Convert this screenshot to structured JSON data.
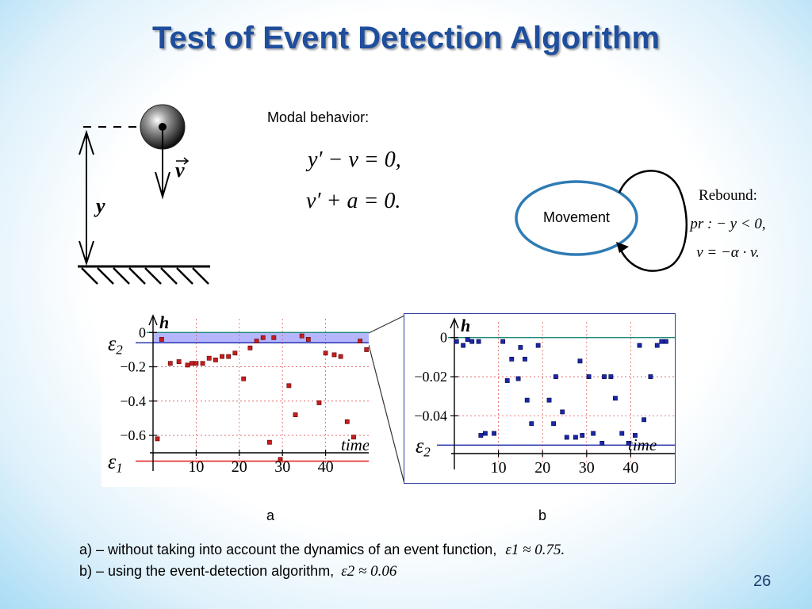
{
  "title": "Test of Event Detection Algorithm",
  "modal_behavior": {
    "label": "Modal behavior:",
    "eq1": "y′ − v = 0,",
    "eq2": "v′ + a = 0."
  },
  "state_diagram": {
    "state": "Movement",
    "transition_title": "Rebound:",
    "transition_predicate": "pr : − y < 0,",
    "transition_action": "v = −α · v."
  },
  "ball_diagram": {
    "velocity_label": "v",
    "height_label": "y"
  },
  "panels": {
    "a": {
      "label": "a"
    },
    "b": {
      "label": "b"
    }
  },
  "caption": {
    "line_a": "a) – without taking into account the dynamics of an event function,",
    "line_a_math": "ε1 ≈ 0.75.",
    "line_b": "b) – using the event-detection algorithm,",
    "line_b_math": "ε2 ≈ 0.06"
  },
  "slide_number": "26",
  "colors": {
    "title": "#1f4e9c",
    "state_border": "#2e7bb4",
    "series_a": "#c41e1e",
    "series_b": "#1a27a8",
    "eps2_band": "#a9a9ff",
    "eps1_line": "#e31a1a",
    "top_line": "#1a8a7a"
  },
  "chart_data": [
    {
      "type": "scatter",
      "ylabel": "h",
      "xlabel": "time",
      "xticks": [
        10,
        20,
        30,
        40
      ],
      "yticks": [
        0,
        -0.2,
        -0.4,
        -0.6
      ],
      "ytick_labels": [
        "0",
        "−0.2",
        "−0.4",
        "−0.6"
      ],
      "xlim": [
        0,
        50
      ],
      "ylim": [
        -0.78,
        0.08
      ],
      "annotations": [
        {
          "text": "ε2",
          "y": -0.06
        },
        {
          "text": "ε1",
          "y": -0.75
        }
      ],
      "grid": true,
      "x": [
        1,
        2,
        4,
        6,
        8,
        9,
        10,
        11.5,
        13,
        14.5,
        16,
        17.5,
        19,
        21,
        22.5,
        24,
        25.5,
        27,
        28,
        29.5,
        31.5,
        33,
        34.5,
        36,
        38.5,
        40,
        42,
        43.5,
        45,
        46.5,
        48,
        49.5
      ],
      "y": [
        -0.62,
        -0.04,
        -0.18,
        -0.17,
        -0.19,
        -0.18,
        -0.18,
        -0.18,
        -0.15,
        -0.16,
        -0.14,
        -0.14,
        -0.12,
        -0.27,
        -0.09,
        -0.05,
        -0.03,
        -0.64,
        -0.03,
        -0.74,
        -0.31,
        -0.48,
        -0.02,
        -0.04,
        -0.41,
        -0.12,
        -0.13,
        -0.14,
        -0.52,
        -0.61,
        -0.05,
        -0.1
      ]
    },
    {
      "type": "scatter",
      "ylabel": "h",
      "xlabel": "time",
      "xticks": [
        10,
        20,
        30,
        40
      ],
      "yticks": [
        0,
        -0.02,
        -0.04
      ],
      "ytick_labels": [
        "0",
        "−0.02",
        "−0.04"
      ],
      "xlim": [
        0,
        50
      ],
      "ylim": [
        -0.065,
        0.008
      ],
      "annotations": [
        {
          "text": "ε2",
          "y": -0.055
        }
      ],
      "grid": true,
      "x": [
        0.5,
        2,
        3,
        4,
        5.5,
        6,
        7,
        9,
        11,
        12,
        13,
        14.5,
        15,
        16,
        16.5,
        17.5,
        19,
        21.5,
        22.5,
        23,
        24.5,
        25.5,
        27.5,
        28.5,
        29,
        30.5,
        31.5,
        33.5,
        34,
        35.5,
        36.5,
        38,
        39.5,
        41,
        42,
        43,
        44.5,
        46,
        47,
        48
      ],
      "y": [
        -0.002,
        -0.004,
        -0.001,
        -0.002,
        -0.002,
        -0.05,
        -0.049,
        -0.049,
        -0.002,
        -0.022,
        -0.011,
        -0.021,
        -0.005,
        -0.011,
        -0.032,
        -0.044,
        -0.004,
        -0.032,
        -0.044,
        -0.02,
        -0.038,
        -0.051,
        -0.051,
        -0.012,
        -0.05,
        -0.02,
        -0.049,
        -0.054,
        -0.02,
        -0.02,
        -0.031,
        -0.049,
        -0.054,
        -0.05,
        -0.004,
        -0.042,
        -0.02,
        -0.004,
        -0.002,
        -0.002
      ]
    }
  ]
}
